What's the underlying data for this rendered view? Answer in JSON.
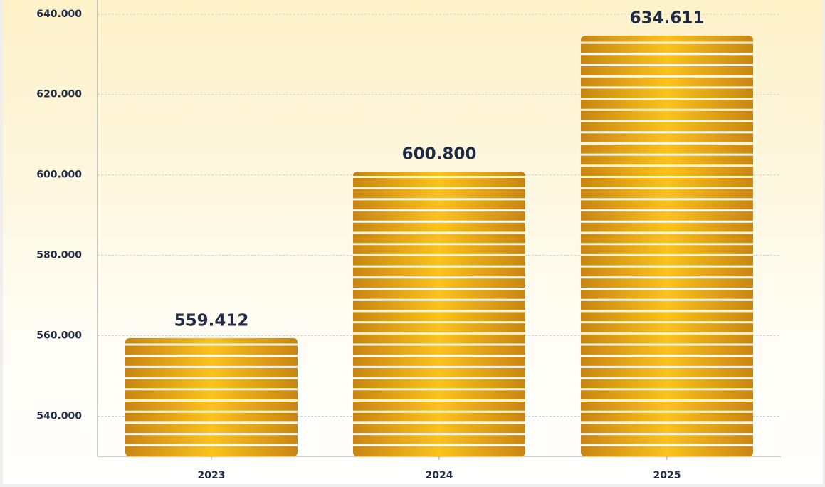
{
  "chart_data": {
    "type": "bar",
    "categories": [
      "2023",
      "2024",
      "2025"
    ],
    "values": [
      559412,
      600800,
      634611
    ],
    "value_labels": [
      "559.412",
      "600.800",
      "634.611"
    ],
    "color": "#f0b41c",
    "ylim": [
      530000,
      643500
    ],
    "yticks": [
      {
        "value": 540000,
        "label": "540.000"
      },
      {
        "value": 560000,
        "label": "560.000"
      },
      {
        "value": 580000,
        "label": "580.000"
      },
      {
        "value": 600000,
        "label": "600.000"
      },
      {
        "value": 620000,
        "label": "620.000"
      },
      {
        "value": 640000,
        "label": "640.000"
      }
    ],
    "grid": true
  }
}
